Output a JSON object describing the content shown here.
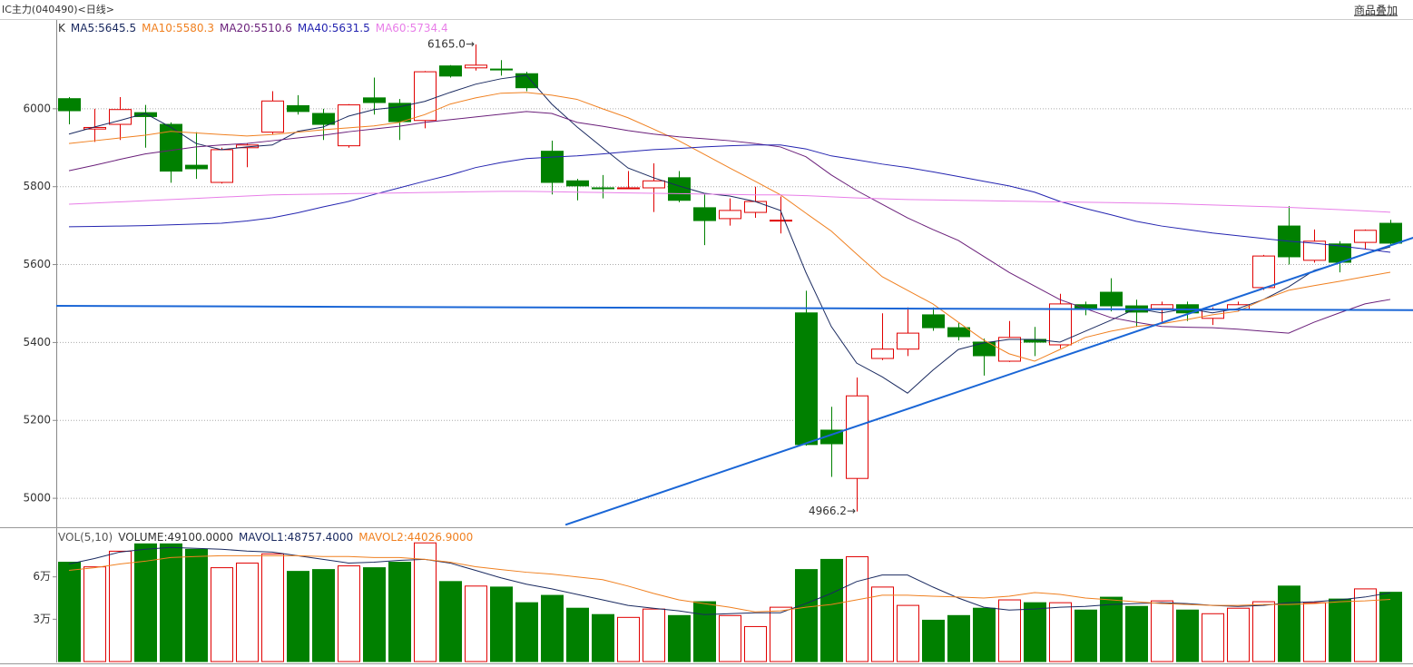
{
  "header": {
    "title": "IC主力(040490)<日线>",
    "link": "商品叠加"
  },
  "chart_data": [
    {
      "type": "candlestick",
      "label": "K",
      "up_color": "#e00000",
      "down_color": "#008000",
      "categories": [
        null,
        null,
        null,
        null,
        null,
        null,
        null,
        null,
        null,
        null,
        null,
        null,
        null,
        null,
        null,
        null,
        null,
        null,
        null,
        null,
        null,
        null,
        null,
        null,
        null,
        null,
        null,
        null,
        null,
        null,
        null,
        null,
        null,
        null,
        null,
        null,
        null,
        null,
        null,
        null,
        null,
        null,
        null,
        null,
        null,
        null,
        null,
        null,
        null,
        null,
        null,
        null,
        null
      ],
      "open": [
        6026,
        5948,
        5960,
        5990,
        5960,
        5855,
        5811,
        5900,
        5940,
        6008,
        5988,
        5905,
        6028,
        6014,
        5970,
        6110,
        6105,
        6102,
        6090,
        5891,
        5815,
        5797,
        5795,
        5797,
        5823,
        5746,
        5718,
        5734,
        5712,
        5476,
        5175,
        5051,
        5359,
        5383,
        5471,
        5438,
        5401,
        5352,
        5408,
        5394,
        5497,
        5529,
        5494,
        5487,
        5497,
        5462,
        5485,
        5541,
        5699,
        5611,
        5653,
        5657,
        5706
      ],
      "high": [
        6030,
        6000,
        6030,
        6010,
        5965,
        5940,
        5900,
        5910,
        6045,
        6035,
        6000,
        6012,
        6080,
        6025,
        6097,
        6112,
        6165,
        6125,
        6095,
        5918,
        5820,
        5830,
        5840,
        5860,
        5840,
        5780,
        5770,
        5800,
        5775,
        5533,
        5235,
        5310,
        5475,
        5490,
        5490,
        5450,
        5410,
        5455,
        5440,
        5525,
        5505,
        5565,
        5510,
        5505,
        5505,
        5490,
        5505,
        5625,
        5750,
        5690,
        5660,
        5690,
        5715
      ],
      "low": [
        5960,
        5915,
        5920,
        5900,
        5810,
        5820,
        5808,
        5850,
        5935,
        5985,
        5920,
        5900,
        5985,
        5920,
        5950,
        6080,
        6098,
        6085,
        6045,
        5780,
        5765,
        5770,
        5795,
        5735,
        5760,
        5650,
        5700,
        5720,
        5680,
        5135,
        5055,
        4966.2,
        5355,
        5365,
        5430,
        5405,
        5315,
        5350,
        5365,
        5385,
        5470,
        5480,
        5440,
        5450,
        5455,
        5445,
        5480,
        5535,
        5600,
        5605,
        5580,
        5640,
        5650
      ],
      "close": [
        5995,
        5952,
        5998,
        5980,
        5840,
        5846,
        5895,
        5907,
        6020,
        5993,
        5960,
        6010,
        6016,
        5967,
        6095,
        6084,
        6112,
        6100,
        6054,
        5811,
        5802,
        5795,
        5797,
        5815,
        5765,
        5713,
        5739,
        5762,
        5714,
        5138,
        5140,
        5263,
        5383,
        5424,
        5438,
        5415,
        5366,
        5413,
        5401,
        5499,
        5487,
        5494,
        5478,
        5497,
        5476,
        5485,
        5497,
        5622,
        5620,
        5660,
        5606,
        5688,
        5655
      ],
      "series": [
        {
          "name": "MA5:5645.5",
          "color": "#1a2a60",
          "values": [
            5935,
            5953,
            5970,
            5988,
            5953,
            5911,
            5895,
            5902,
            5907,
            5942,
            5953,
            5981,
            5998,
            6005,
            6019,
            6042,
            6063,
            6077,
            6086,
            6012,
            5953,
            5900,
            5848,
            5823,
            5802,
            5783,
            5776,
            5762,
            5739,
            5580,
            5441,
            5347,
            5312,
            5270,
            5329,
            5382,
            5399,
            5408,
            5408,
            5401,
            5429,
            5457,
            5487,
            5476,
            5487,
            5476,
            5487,
            5510,
            5543,
            5585,
            5604,
            5627,
            5645.5
          ]
        },
        {
          "name": "MA10:5580.3",
          "color": "#f08020",
          "values": [
            5911,
            5918,
            5925,
            5932,
            5942,
            5938,
            5934,
            5930,
            5934,
            5940,
            5946,
            5951,
            5956,
            5965,
            5985,
            6012,
            6028,
            6040,
            6042,
            6035,
            6024,
            6000,
            5977,
            5948,
            5918,
            5883,
            5848,
            5814,
            5779,
            5732,
            5686,
            5627,
            5569,
            5534,
            5499,
            5452,
            5406,
            5371,
            5352,
            5382,
            5413,
            5429,
            5441,
            5448,
            5459,
            5471,
            5480,
            5510,
            5534,
            5546,
            5557,
            5569,
            5580.3
          ]
        },
        {
          "name": "MA20:5510.6",
          "color": "#6a1f7a",
          "values": [
            5841,
            5855,
            5870,
            5884,
            5893,
            5902,
            5907,
            5911,
            5918,
            5925,
            5932,
            5941,
            5948,
            5955,
            5965,
            5972,
            5979,
            5986,
            5993,
            5988,
            5965,
            5955,
            5944,
            5935,
            5928,
            5923,
            5918,
            5911,
            5902,
            5877,
            5830,
            5790,
            5755,
            5720,
            5690,
            5662,
            5621,
            5580,
            5545,
            5510,
            5487,
            5464,
            5452,
            5441,
            5439,
            5438,
            5434,
            5429,
            5424,
            5452,
            5476,
            5499,
            5510.6
          ]
        },
        {
          "name": "MA40:5631.5",
          "color": "#2424b0",
          "values": [
            5697,
            5698,
            5699,
            5700,
            5702,
            5704,
            5706,
            5712,
            5720,
            5733,
            5748,
            5762,
            5780,
            5797,
            5814,
            5830,
            5849,
            5862,
            5872,
            5876,
            5879,
            5884,
            5890,
            5895,
            5898,
            5902,
            5905,
            5907,
            5907,
            5897,
            5879,
            5869,
            5858,
            5849,
            5838,
            5826,
            5814,
            5802,
            5786,
            5762,
            5744,
            5728,
            5711,
            5699,
            5690,
            5681,
            5674,
            5667,
            5660,
            5655,
            5648,
            5640,
            5631.5
          ]
        },
        {
          "name": "MA60:5734.4",
          "color": "#e87ee8",
          "values": [
            5755,
            5758,
            5761,
            5764,
            5767,
            5770,
            5773,
            5776,
            5779,
            5780,
            5781,
            5782,
            5783,
            5784,
            5785,
            5786,
            5787,
            5788,
            5788,
            5787,
            5786,
            5785,
            5784,
            5783,
            5782,
            5781,
            5780,
            5779,
            5779,
            5777,
            5774,
            5771,
            5769,
            5767,
            5766,
            5765,
            5764,
            5763,
            5762,
            5761,
            5760,
            5759,
            5758,
            5757,
            5755,
            5753,
            5751,
            5749,
            5747,
            5744,
            5741,
            5738,
            5734.4
          ]
        }
      ],
      "trendlines": [
        {
          "color": "#1a66d6",
          "x": [
            -0.5,
            52.9
          ],
          "y": [
            5494,
            5483
          ]
        },
        {
          "color": "#1a66d6",
          "x": [
            19.54,
            52.9
          ],
          "y": [
            4932,
            5669
          ]
        }
      ],
      "annotations": [
        {
          "text": "6165.0→",
          "x": 16,
          "y": 6165
        },
        {
          "text": "4966.2→",
          "x": 31,
          "y": 4966.2
        }
      ],
      "ylim": [
        4928,
        6228
      ],
      "yticks": [
        5000,
        5200,
        5400,
        5600,
        5800,
        6000
      ],
      "grid": true
    },
    {
      "type": "bar",
      "label": "VOL(5,10)",
      "volume_label": "VOLUME:49100.0000",
      "values": [
        70400,
        67100,
        78200,
        83400,
        83400,
        79500,
        66500,
        69800,
        76300,
        63900,
        65200,
        67800,
        66500,
        70400,
        84100,
        56700,
        53500,
        52800,
        41700,
        46900,
        37800,
        33300,
        31300,
        37200,
        32600,
        42400,
        32600,
        24800,
        38500,
        65200,
        72400,
        74300,
        52800,
        39800,
        29300,
        32600,
        37800,
        43700,
        41700,
        41700,
        36500,
        45600,
        39100,
        43000,
        36500,
        33900,
        37800,
        42400,
        53500,
        41700,
        44300,
        51500,
        49100
      ],
      "series": [
        {
          "name": "MAVOL1:48757.4000",
          "color": "#1a2a60",
          "values": [
            69100,
            73000,
            77600,
            79600,
            80900,
            80200,
            79600,
            78300,
            77600,
            75000,
            72400,
            69800,
            70400,
            71700,
            72400,
            69800,
            64600,
            59300,
            54800,
            51500,
            47600,
            43700,
            39800,
            37800,
            35900,
            33300,
            33900,
            34600,
            34600,
            41100,
            48300,
            56700,
            61300,
            61300,
            52800,
            45000,
            38500,
            36500,
            37200,
            38500,
            39100,
            40400,
            41100,
            41700,
            41100,
            39800,
            39100,
            39800,
            41700,
            42400,
            43700,
            45700,
            48757.4
          ]
        },
        {
          "name": "MAVOL2:44026.9000",
          "color": "#f08020",
          "values": [
            64600,
            66500,
            69100,
            71100,
            73700,
            74400,
            75000,
            75000,
            75000,
            75000,
            74400,
            74400,
            73700,
            73700,
            72400,
            70400,
            67200,
            65200,
            63300,
            62000,
            60000,
            58000,
            53500,
            48300,
            43700,
            41100,
            38500,
            35200,
            35900,
            38500,
            40400,
            43700,
            47000,
            47000,
            46300,
            45700,
            45000,
            46300,
            48900,
            47600,
            45000,
            43700,
            42400,
            41100,
            40400,
            39800,
            39800,
            40400,
            40400,
            41100,
            42400,
            43000,
            44026.9
          ]
        }
      ],
      "ylim": [
        0,
        92600
      ],
      "yticks": [
        {
          "value": 30000,
          "label": "3万"
        },
        {
          "value": 60000,
          "label": "6万"
        }
      ]
    }
  ]
}
